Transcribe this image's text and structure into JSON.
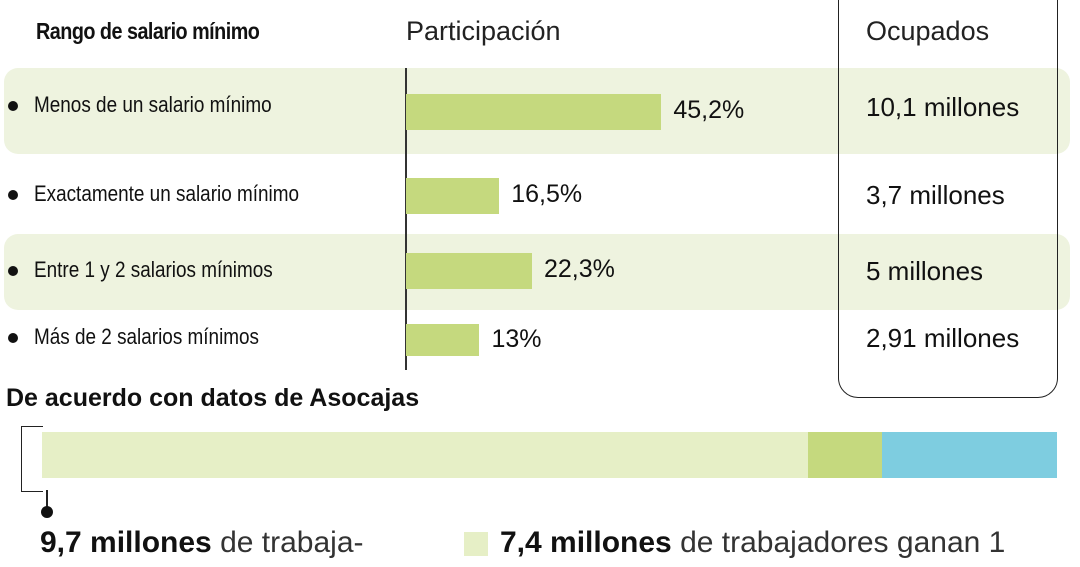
{
  "headers": {
    "range": "Rango de salario mínimo",
    "participation": "Participación",
    "occupied": "Ocupados"
  },
  "chart_data": [
    {
      "type": "bar",
      "categories": [
        "Menos de un salario mínimo",
        "Exactamente un salario mínimo",
        "Entre 1 y 2 salarios mínimos",
        "Más de 2 salarios mínimos"
      ],
      "values": [
        45.2,
        16.5,
        22.3,
        13
      ],
      "value_labels": [
        "45,2%",
        "16,5%",
        "22,3%",
        "13%"
      ],
      "occupied_labels": [
        "10,1 millones",
        "3,7 millones",
        "5 millones",
        "2,91 millones"
      ],
      "xlim": [
        0,
        100
      ],
      "xlabel": "Participación",
      "highlighted_rows": [
        0,
        2
      ]
    },
    {
      "type": "bar",
      "title": "De acuerdo con datos de Asocajas",
      "segments": [
        {
          "value": 75.5,
          "color": "#e6efc6"
        },
        {
          "value": 7.3,
          "color": "#c5d97e"
        },
        {
          "value": 17.2,
          "color": "#7ecde0"
        }
      ]
    }
  ],
  "annotations": {
    "a1_bold": "9,7 millones",
    "a1_text": " de trabaja-",
    "a2_bold": "7,4 millones",
    "a2_text": " de trabajadores ganan 1"
  },
  "colors": {
    "bar": "#c5d97e",
    "band": "#eef3df",
    "light": "#e6efc6",
    "blue": "#7ecde0"
  }
}
